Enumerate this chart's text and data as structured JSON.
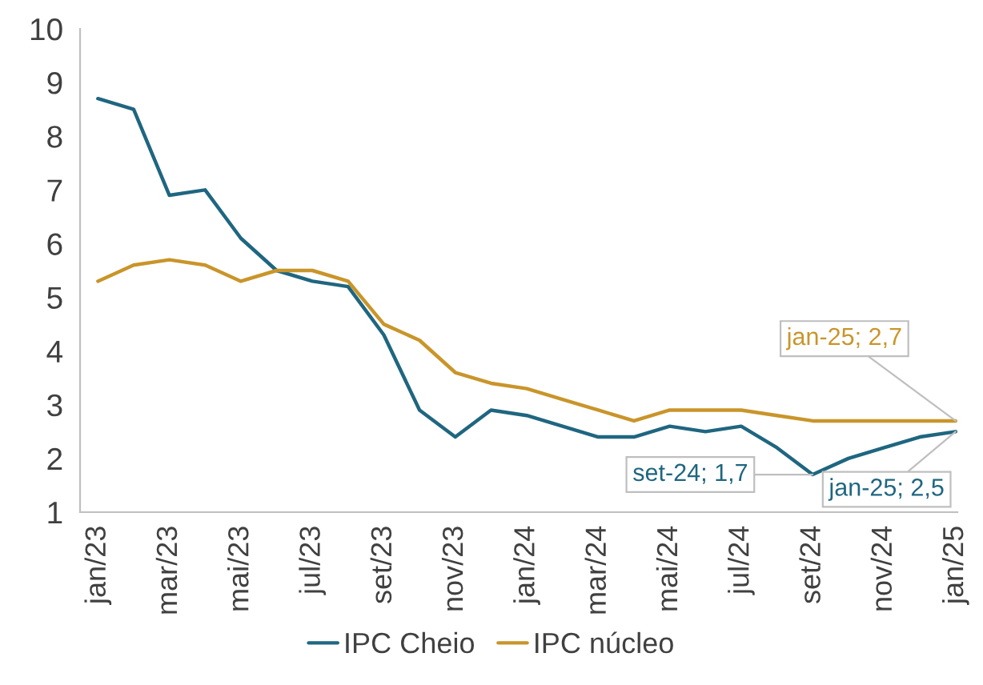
{
  "chart_data": {
    "type": "line",
    "categories": [
      "jan/23",
      null,
      "mar/23",
      null,
      "mai/23",
      null,
      "jul/23",
      null,
      "set/23",
      null,
      "nov/23",
      null,
      "jan/24",
      null,
      "mar/24",
      null,
      "mai/24",
      null,
      "jul/24",
      null,
      "set/24",
      null,
      "nov/24",
      null,
      "jan/25"
    ],
    "series": [
      {
        "name": "IPC Cheio",
        "color": "#1f6680",
        "values": [
          8.7,
          8.5,
          6.9,
          7.0,
          6.1,
          5.5,
          5.3,
          5.2,
          4.3,
          2.9,
          2.4,
          2.9,
          2.8,
          2.6,
          2.4,
          2.4,
          2.6,
          2.5,
          2.6,
          2.2,
          1.7,
          2.0,
          2.2,
          2.4,
          2.5
        ]
      },
      {
        "name": "IPC núcleo",
        "color": "#c9952a",
        "values": [
          5.3,
          5.6,
          5.7,
          5.6,
          5.3,
          5.5,
          5.5,
          5.3,
          4.5,
          4.2,
          3.6,
          3.4,
          3.3,
          3.1,
          2.9,
          2.7,
          2.9,
          2.9,
          2.9,
          2.8,
          2.7,
          2.7,
          2.7,
          2.7,
          2.7
        ]
      }
    ],
    "ylim": [
      1,
      10
    ],
    "yticks": [
      1,
      2,
      3,
      4,
      5,
      6,
      7,
      8,
      9,
      10
    ],
    "grid": false,
    "legend": "bottom",
    "marker": "none",
    "line_style": "solid",
    "annotations": [
      {
        "text": "jan-25; 2,7",
        "x": "jan/25",
        "y": 2.7
      },
      {
        "text": "set-24; 1,7",
        "x": "set/24",
        "y": 1.7
      },
      {
        "text": "jan-25; 2,5",
        "x": "jan/25",
        "y": 2.5
      }
    ]
  }
}
